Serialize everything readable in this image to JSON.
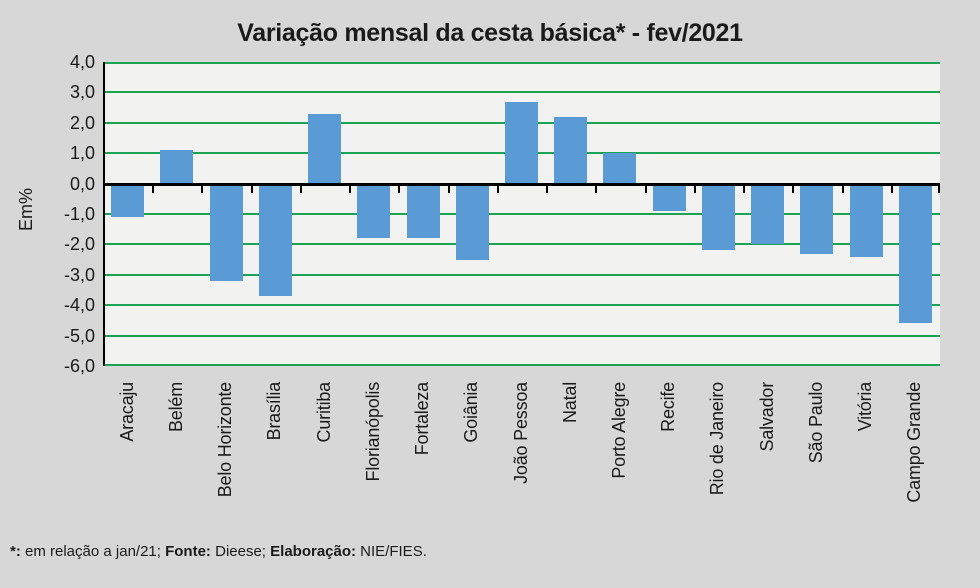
{
  "title": "Variação mensal da cesta básica* - fev/2021",
  "footnote": {
    "segments": [
      {
        "text": "*:",
        "bold": true
      },
      {
        "text": " em relação a jan/21; ",
        "bold": false
      },
      {
        "text": "Fonte:",
        "bold": true
      },
      {
        "text": " Dieese; ",
        "bold": false
      },
      {
        "text": "Elaboração:",
        "bold": true
      },
      {
        "text": " NIE/FIES.",
        "bold": false
      }
    ]
  },
  "chart_data": {
    "type": "bar",
    "title": "Variação mensal da cesta básica* - fev/2021",
    "xlabel": "",
    "ylabel": "Em%",
    "ylim": [
      -6.0,
      4.0
    ],
    "ytick_step": 1.0,
    "grid": true,
    "legend": false,
    "decimal_separator": ",",
    "colors": {
      "bar": "#5B9BD5",
      "gridline": "#1BA354",
      "axis": "#000000",
      "plot_background": "#F2F2F0",
      "page_background": "#D7D7D7"
    },
    "yticks": [
      {
        "value": 4.0,
        "label": "4,0"
      },
      {
        "value": 3.0,
        "label": "3,0"
      },
      {
        "value": 2.0,
        "label": "2,0"
      },
      {
        "value": 1.0,
        "label": "1,0"
      },
      {
        "value": 0.0,
        "label": "0,0"
      },
      {
        "value": -1.0,
        "label": "-1,0"
      },
      {
        "value": -2.0,
        "label": "-2,0"
      },
      {
        "value": -3.0,
        "label": "-3,0"
      },
      {
        "value": -4.0,
        "label": "-4,0"
      },
      {
        "value": -5.0,
        "label": "-5,0"
      },
      {
        "value": -6.0,
        "label": "-6,0"
      }
    ],
    "categories": [
      "Aracaju",
      "Belém",
      "Belo Horizonte",
      "Brasília",
      "Curitiba",
      "Florianópolis",
      "Fortaleza",
      "Goiânia",
      "João Pessoa",
      "Natal",
      "Porto Alegre",
      "Recife",
      "Rio de Janeiro",
      "Salvador",
      "São Paulo",
      "Vitória",
      "Campo Grande"
    ],
    "values": [
      -1.1,
      1.1,
      -3.2,
      -3.7,
      2.3,
      -1.8,
      -1.8,
      -2.5,
      2.7,
      2.2,
      1.0,
      -0.9,
      -2.2,
      -2.0,
      -2.3,
      -2.4,
      -4.6
    ]
  }
}
